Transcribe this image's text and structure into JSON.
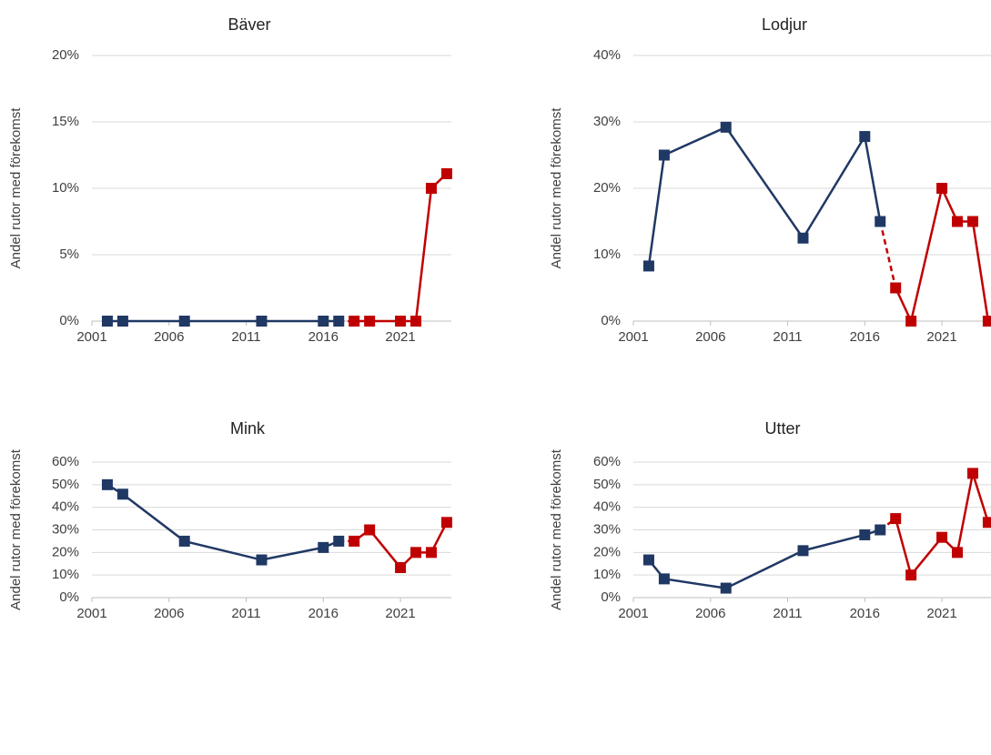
{
  "chart_data": [
    {
      "type": "line",
      "title": "Bäver",
      "ylabel": "Andel rutor med förekomst",
      "xlim": [
        2001,
        2024.3
      ],
      "xticks": [
        2001,
        2006,
        2011,
        2016,
        2021
      ],
      "ylim": [
        0,
        20
      ],
      "yticks": [
        {
          "value": 0,
          "label": "0%"
        },
        {
          "value": 5,
          "label": "5%"
        },
        {
          "value": 10,
          "label": "10%"
        },
        {
          "value": 15,
          "label": "15%"
        },
        {
          "value": 20,
          "label": "20%"
        }
      ],
      "grid": true,
      "dashed_connector": true,
      "series": [
        {
          "color": "#203864",
          "x": [
            2002,
            2003,
            2007,
            2012,
            2016,
            2017
          ],
          "values": [
            0,
            0,
            0,
            0,
            0,
            0
          ]
        },
        {
          "color": "#c00000",
          "x": [
            2018,
            2019,
            2021,
            2022,
            2023,
            2024
          ],
          "values": [
            0,
            0,
            0,
            0,
            10,
            11.1
          ]
        }
      ]
    },
    {
      "type": "line",
      "title": "Lodjur",
      "ylabel": "Andel rutor med förekomst",
      "xlim": [
        2001,
        2024.3
      ],
      "xticks": [
        2001,
        2006,
        2011,
        2016,
        2021
      ],
      "ylim": [
        0,
        40
      ],
      "yticks": [
        {
          "value": 0,
          "label": "0%"
        },
        {
          "value": 10,
          "label": "10%"
        },
        {
          "value": 20,
          "label": "20%"
        },
        {
          "value": 30,
          "label": "30%"
        },
        {
          "value": 40,
          "label": "40%"
        }
      ],
      "grid": true,
      "dashed_connector": true,
      "series": [
        {
          "color": "#203864",
          "x": [
            2002,
            2003,
            2007,
            2012,
            2016,
            2017
          ],
          "values": [
            8.3,
            25,
            29.2,
            12.5,
            27.8,
            15
          ]
        },
        {
          "color": "#c00000",
          "x": [
            2018,
            2019,
            2021,
            2022,
            2023,
            2024
          ],
          "values": [
            5,
            0,
            20,
            15,
            15,
            0
          ]
        }
      ]
    },
    {
      "type": "line",
      "title": "Mink",
      "ylabel": "Andel rutor med förekomst",
      "xlim": [
        2001,
        2024.3
      ],
      "xticks": [
        2001,
        2006,
        2011,
        2016,
        2021
      ],
      "ylim": [
        0,
        60
      ],
      "yticks": [
        {
          "value": 0,
          "label": "0%"
        },
        {
          "value": 10,
          "label": "10%"
        },
        {
          "value": 20,
          "label": "20%"
        },
        {
          "value": 30,
          "label": "30%"
        },
        {
          "value": 40,
          "label": "40%"
        },
        {
          "value": 50,
          "label": "50%"
        },
        {
          "value": 60,
          "label": "60%"
        }
      ],
      "grid": true,
      "dashed_connector": true,
      "series": [
        {
          "color": "#203864",
          "x": [
            2002,
            2003,
            2007,
            2012,
            2016,
            2017
          ],
          "values": [
            50,
            45.8,
            25,
            16.7,
            22.2,
            25
          ]
        },
        {
          "color": "#c00000",
          "x": [
            2018,
            2019,
            2021,
            2022,
            2023,
            2024
          ],
          "values": [
            25,
            30,
            13.3,
            20,
            20,
            33.3
          ]
        }
      ]
    },
    {
      "type": "line",
      "title": "Utter",
      "ylabel": "Andel rutor med förekomst",
      "xlim": [
        2001,
        2024.3
      ],
      "xticks": [
        2001,
        2006,
        2011,
        2016,
        2021
      ],
      "ylim": [
        0,
        60
      ],
      "yticks": [
        {
          "value": 0,
          "label": "0%"
        },
        {
          "value": 10,
          "label": "10%"
        },
        {
          "value": 20,
          "label": "20%"
        },
        {
          "value": 30,
          "label": "30%"
        },
        {
          "value": 40,
          "label": "40%"
        },
        {
          "value": 50,
          "label": "50%"
        },
        {
          "value": 60,
          "label": "60%"
        }
      ],
      "grid": true,
      "dashed_connector": true,
      "series": [
        {
          "color": "#203864",
          "x": [
            2002,
            2003,
            2007,
            2012,
            2016,
            2017
          ],
          "values": [
            16.7,
            8.3,
            4.2,
            20.8,
            27.8,
            30
          ]
        },
        {
          "color": "#c00000",
          "x": [
            2018,
            2019,
            2021,
            2022,
            2023,
            2024
          ],
          "values": [
            35,
            10,
            26.7,
            20,
            55,
            33.3
          ]
        }
      ]
    }
  ]
}
